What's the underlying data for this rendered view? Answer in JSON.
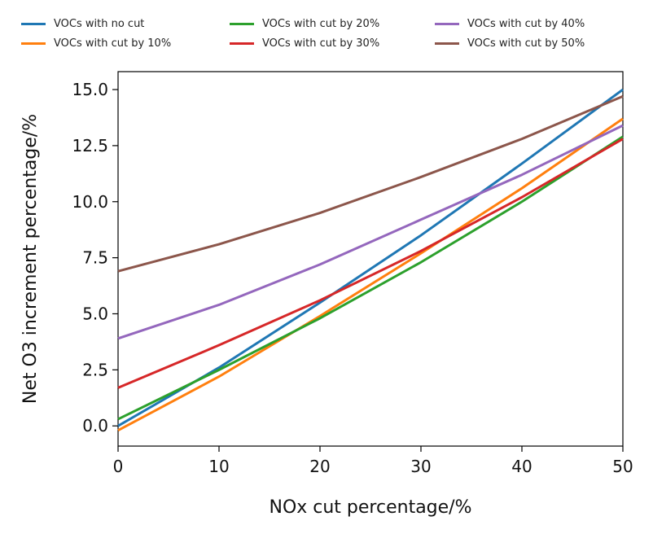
{
  "chart_data": {
    "type": "line",
    "title": "",
    "xlabel": "NOx cut percentage/%",
    "ylabel": "Net O3 increment percentage/%",
    "xlim": [
      0,
      50
    ],
    "ylim": [
      -0.9,
      15.8
    ],
    "x_ticks": [
      "0",
      "10",
      "20",
      "30",
      "40",
      "50"
    ],
    "y_ticks": [
      "0.0",
      "2.5",
      "5.0",
      "7.5",
      "10.0",
      "12.5",
      "15.0"
    ],
    "legend_placement": "top, above plot",
    "grid": false,
    "x": [
      0,
      10,
      20,
      30,
      40,
      50
    ],
    "series": [
      {
        "name": "VOCs with no cut",
        "color": "#1f77b4",
        "values": [
          0.0,
          2.6,
          5.5,
          8.5,
          11.7,
          15.0
        ]
      },
      {
        "name": "VOCs with cut by 10%",
        "color": "#ff7f0e",
        "values": [
          -0.2,
          2.2,
          4.9,
          7.7,
          10.6,
          13.7
        ]
      },
      {
        "name": "VOCs with cut by 20%",
        "color": "#2ca02c",
        "values": [
          0.3,
          2.5,
          4.8,
          7.3,
          10.0,
          12.9
        ]
      },
      {
        "name": "VOCs with cut by 30%",
        "color": "#d62728",
        "values": [
          1.7,
          3.6,
          5.6,
          7.8,
          10.2,
          12.8
        ]
      },
      {
        "name": "VOCs with cut by 40%",
        "color": "#9467bd",
        "values": [
          3.9,
          5.4,
          7.2,
          9.2,
          11.2,
          13.4
        ]
      },
      {
        "name": "VOCs with cut by 50%",
        "color": "#8c564b",
        "values": [
          6.9,
          8.1,
          9.5,
          11.1,
          12.8,
          14.7
        ]
      }
    ]
  }
}
